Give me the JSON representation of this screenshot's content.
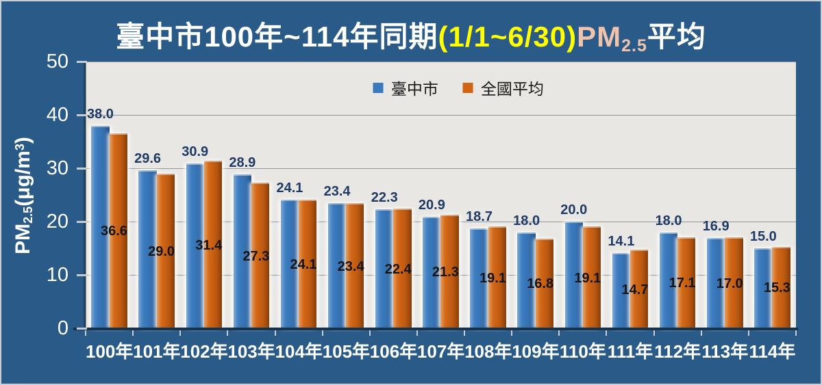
{
  "title": {
    "prefix": "臺中市100年~114年同期",
    "period": "(1/1~6/30)",
    "pm_text": "PM",
    "pm_subscript": "2.5",
    "suffix": "平均"
  },
  "y_axis": {
    "title_pm": "PM",
    "title_pm_subscript": "2.5",
    "title_unit_open": "(μg/m",
    "title_unit_superscript": "3",
    "title_unit_close": ")",
    "tick_labels": [
      "0",
      "10",
      "20",
      "30",
      "40",
      "50"
    ]
  },
  "legend": {
    "items": [
      {
        "label": "臺中市",
        "color": "#3A7ABD"
      },
      {
        "label": "全國平均",
        "color": "#CF6415"
      }
    ]
  },
  "chart_data": {
    "type": "bar",
    "title": "臺中市100年~114年同期(1/1~6/30)PM2.5平均",
    "ylabel": "PM2.5(μg/m³)",
    "xlabel": "",
    "ylim": [
      0,
      50
    ],
    "y_tick_step": 10,
    "grid": true,
    "legend_position": "top-center-inside",
    "categories": [
      "100年",
      "101年",
      "102年",
      "103年",
      "104年",
      "105年",
      "106年",
      "107年",
      "108年",
      "109年",
      "110年",
      "111年",
      "112年",
      "113年",
      "114年"
    ],
    "series": [
      {
        "name": "臺中市",
        "color": "#3A7ABD",
        "label_color": "#1F3A66",
        "label_position": "above-bar",
        "values": [
          38.0,
          29.6,
          30.9,
          28.9,
          24.1,
          23.4,
          22.3,
          20.9,
          18.7,
          18.0,
          20.0,
          14.1,
          18.0,
          16.9,
          15.0
        ]
      },
      {
        "name": "全國平均",
        "color": "#CF6415",
        "label_color": "#141414",
        "label_position": "inside-middle",
        "values": [
          36.6,
          29.0,
          31.4,
          27.3,
          24.1,
          23.4,
          22.4,
          21.3,
          19.1,
          16.8,
          19.1,
          14.7,
          17.1,
          17.0,
          15.3
        ]
      }
    ]
  },
  "colors": {
    "background": "#2A5B88",
    "plot_background": "#E8E7E3",
    "gridline": "#8F959B",
    "axis_line": "#16334E",
    "tick_mark": "#C6CDD3",
    "title_main": "#FFFFFF",
    "title_period": "#FFFF00",
    "title_pm": "#F0C3AC",
    "axis_text": "#FFFFFF",
    "legend_text": "#1A1A1A"
  }
}
